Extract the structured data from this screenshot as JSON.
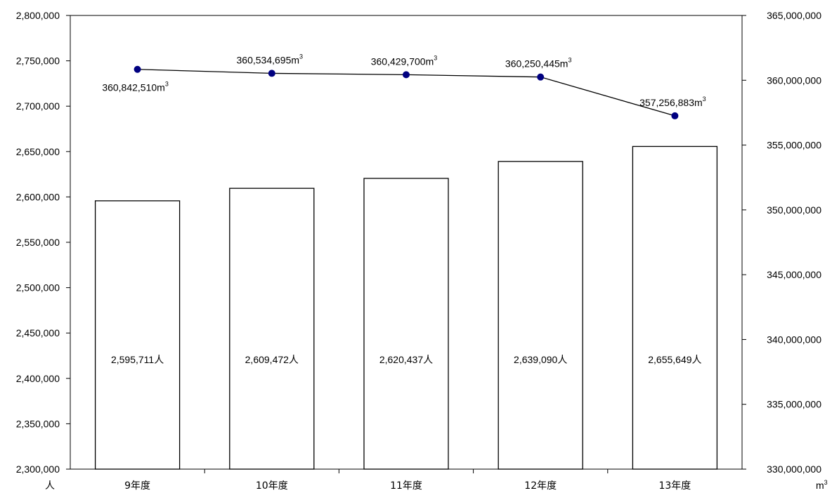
{
  "chart_data": {
    "type": "bar+line",
    "categories": [
      "9年度",
      "10年度",
      "11年度",
      "12年度",
      "13年度"
    ],
    "bar_series": {
      "values": [
        2595711,
        2609472,
        2620437,
        2639090,
        2655649
      ],
      "labels": [
        "2,595,711人",
        "2,609,472人",
        "2,620,437人",
        "2,639,090人",
        "2,655,649人"
      ],
      "axis": "left"
    },
    "line_series": {
      "values": [
        360842510,
        360534695,
        360429700,
        360250445,
        357256883
      ],
      "labels": [
        "360,842,510m",
        "360,534,695m",
        "360,429,700m",
        "360,250,445m",
        "357,256,883m"
      ],
      "label_superscript": "3",
      "axis": "right",
      "color": "#000080",
      "line_color": "#000000"
    },
    "left_axis": {
      "ylim": [
        2300000,
        2800000
      ],
      "ticks": [
        "2,300,000",
        "2,350,000",
        "2,400,000",
        "2,450,000",
        "2,500,000",
        "2,550,000",
        "2,600,000",
        "2,650,000",
        "2,700,000",
        "2,750,000",
        "2,800,000"
      ],
      "unit": "人"
    },
    "right_axis": {
      "ylim": [
        330000000,
        365000000
      ],
      "ticks": [
        "330,000,000",
        "335,000,000",
        "340,000,000",
        "345,000,000",
        "350,000,000",
        "355,000,000",
        "360,000,000",
        "365,000,000"
      ],
      "unit": "m",
      "unit_superscript": "3"
    },
    "grid": false,
    "legend": "none"
  }
}
